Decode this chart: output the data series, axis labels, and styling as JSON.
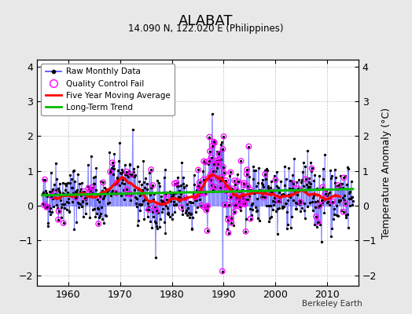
{
  "title": "ALABAT",
  "subtitle": "14.090 N, 122.020 E (Philippines)",
  "ylabel": "Temperature Anomaly (°C)",
  "credit": "Berkeley Earth",
  "ylim": [
    -2.3,
    4.2
  ],
  "xlim": [
    1954,
    2016
  ],
  "yticks": [
    -2,
    -1,
    0,
    1,
    2,
    3,
    4
  ],
  "xticks": [
    1960,
    1970,
    1980,
    1990,
    2000,
    2010
  ],
  "bg_color": "#e8e8e8",
  "plot_bg_color": "#ffffff",
  "line_color_raw": "#4444ff",
  "line_alpha": 0.5,
  "marker_color_raw": "#000000",
  "moving_avg_color": "#ff0000",
  "trend_color": "#00bb00",
  "qc_fail_color": "#ff00ff",
  "legend_labels": [
    "Raw Monthly Data",
    "Quality Control Fail",
    "Five Year Moving Average",
    "Long-Term Trend"
  ],
  "start_year": 1955,
  "end_year": 2015,
  "seed": 42,
  "trend_intercept": 0.35,
  "trend_slope": 0.003
}
